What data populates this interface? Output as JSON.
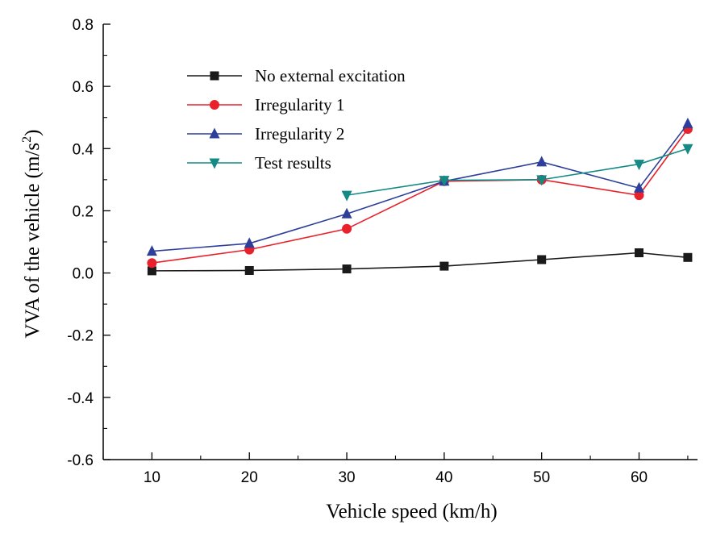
{
  "chart_data": {
    "type": "line",
    "title": "",
    "xlabel": "Vehicle speed (km/h)",
    "ylabel_main": "VVA of the vehicle (m/s",
    "ylabel_sup": "2",
    "ylabel_close": ")",
    "xlim": [
      5,
      66
    ],
    "ylim": [
      -0.6,
      0.8
    ],
    "xticks": [
      10,
      20,
      30,
      40,
      50,
      60
    ],
    "xtick_labels": [
      "10",
      "20",
      "30",
      "40",
      "50",
      "60"
    ],
    "yticks": [
      -0.6,
      -0.4,
      -0.2,
      0.0,
      0.2,
      0.4,
      0.6,
      0.8
    ],
    "ytick_labels": [
      "-0.6",
      "-0.4",
      "-0.2",
      "0.0",
      "0.2",
      "0.4",
      "0.6",
      "0.8"
    ],
    "legend_position": "top-left",
    "grid": false,
    "series": [
      {
        "name": "No external excitation",
        "color": "#1a1a1a",
        "marker": "square",
        "x": [
          10,
          20,
          30,
          40,
          50,
          60,
          65
        ],
        "y": [
          0.007,
          0.008,
          0.013,
          0.022,
          0.043,
          0.065,
          0.05
        ]
      },
      {
        "name": "Irregularity 1",
        "color": "#e8212b",
        "marker": "circle",
        "x": [
          10,
          20,
          30,
          40,
          50,
          60,
          65
        ],
        "y": [
          0.032,
          0.075,
          0.142,
          0.295,
          0.3,
          0.25,
          0.463
        ]
      },
      {
        "name": "Irregularity 2",
        "color": "#2e3f9b",
        "marker": "triangle-up",
        "x": [
          10,
          20,
          30,
          40,
          50,
          60,
          65
        ],
        "y": [
          0.07,
          0.095,
          0.19,
          0.295,
          0.357,
          0.273,
          0.48
        ]
      },
      {
        "name": "Test results",
        "color": "#138a84",
        "marker": "triangle-down",
        "x": [
          30,
          40,
          50,
          60,
          65
        ],
        "y": [
          0.25,
          0.298,
          0.3,
          0.35,
          0.4
        ]
      }
    ]
  }
}
